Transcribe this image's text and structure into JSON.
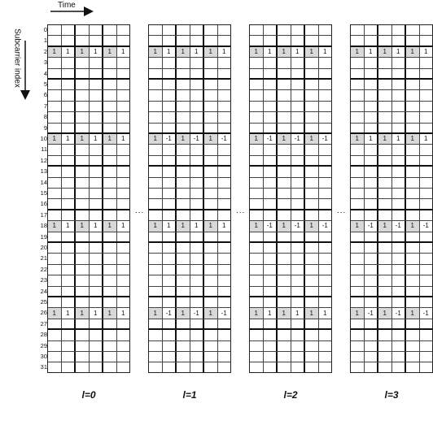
{
  "axes": {
    "time_label": "Time",
    "subcarrier_label": "Subcarrier index"
  },
  "row_indices": [
    "0",
    "1",
    "2",
    "3",
    "4",
    "5",
    "6",
    "7",
    "8",
    "9",
    "10",
    "11",
    "12",
    "13",
    "14",
    "15",
    "16",
    "17",
    "18",
    "19",
    "20",
    "21",
    "22",
    "23",
    "24",
    "25",
    "26",
    "27",
    "28",
    "29",
    "30",
    "31"
  ],
  "ellipsis": "...",
  "blocks": [
    {
      "label": "l=0",
      "pilot_rows": {
        "2": [
          "1",
          "1",
          "1",
          "1",
          "1",
          "1"
        ],
        "10": [
          "1",
          "1",
          "1",
          "1",
          "1",
          "1"
        ],
        "18": [
          "1",
          "1",
          "1",
          "1",
          "1",
          "1"
        ],
        "26": [
          "1",
          "1",
          "1",
          "1",
          "1",
          "1"
        ]
      }
    },
    {
      "label": "l=1",
      "pilot_rows": {
        "2": [
          "1",
          "1",
          "1",
          "1",
          "1",
          "1"
        ],
        "10": [
          "1",
          "-1",
          "1",
          "-1",
          "1",
          "-1"
        ],
        "18": [
          "1",
          "1",
          "1",
          "1",
          "1",
          "1"
        ],
        "26": [
          "1",
          "-1",
          "1",
          "-1",
          "1",
          "-1"
        ]
      }
    },
    {
      "label": "l=2",
      "pilot_rows": {
        "2": [
          "1",
          "1",
          "1",
          "1",
          "1",
          "1"
        ],
        "10": [
          "1",
          "-1",
          "1",
          "-1",
          "1",
          "-1"
        ],
        "18": [
          "1",
          "-1",
          "1",
          "-1",
          "1",
          "-1"
        ],
        "26": [
          "1",
          "1",
          "1",
          "1",
          "1",
          "1"
        ]
      }
    },
    {
      "label": "l=3",
      "pilot_rows": {
        "2": [
          "1",
          "1",
          "1",
          "1",
          "1",
          "1"
        ],
        "10": [
          "1",
          "1",
          "1",
          "1",
          "1",
          "1"
        ],
        "18": [
          "1",
          "-1",
          "1",
          "-1",
          "1",
          "-1"
        ],
        "26": [
          "1",
          "-1",
          "1",
          "-1",
          "1",
          "-1"
        ]
      }
    }
  ]
}
